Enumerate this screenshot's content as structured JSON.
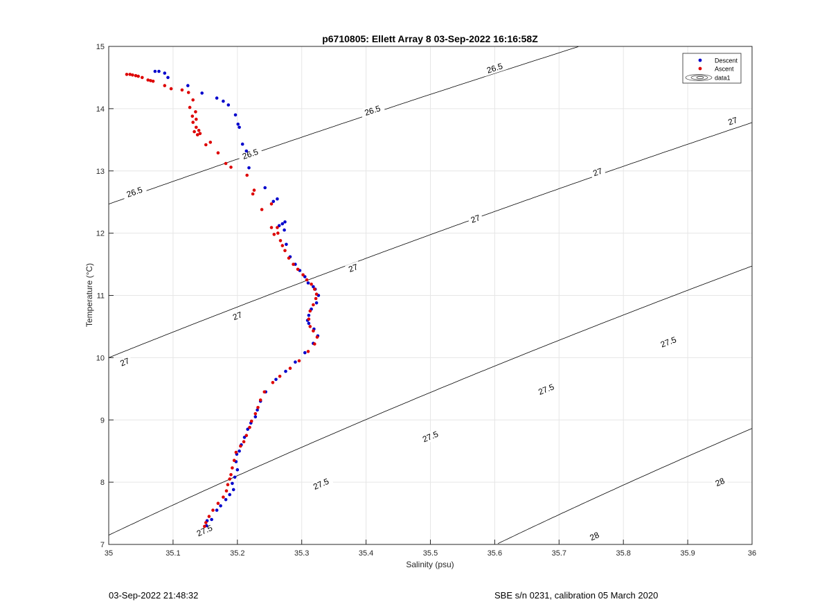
{
  "chart_data": {
    "type": "scatter",
    "title": "p6710805: Ellett Array 8 03-Sep-2022 16:16:58Z",
    "xlabel": "Salinity (psu)",
    "ylabel": "Temperature (°C)",
    "xlim": [
      35,
      36
    ],
    "ylim": [
      7,
      15
    ],
    "xticks": [
      35,
      35.1,
      35.2,
      35.3,
      35.4,
      35.5,
      35.6,
      35.7,
      35.8,
      35.9,
      36
    ],
    "xtick_labels": [
      "35",
      "35.1",
      "35.2",
      "35.3",
      "35.4",
      "35.5",
      "35.6",
      "35.7",
      "35.8",
      "35.9",
      "36"
    ],
    "yticks": [
      7,
      8,
      9,
      10,
      11,
      12,
      13,
      14,
      15
    ],
    "ytick_labels": [
      "7",
      "8",
      "9",
      "10",
      "11",
      "12",
      "13",
      "14",
      "15"
    ],
    "grid": true,
    "legend": {
      "position": "top-right",
      "entries": [
        "Descent",
        "Ascent",
        "data1"
      ]
    },
    "series": [
      {
        "name": "Descent",
        "color": "#0000cc",
        "points": [
          [
            35.072,
            14.6
          ],
          [
            35.078,
            14.6
          ],
          [
            35.087,
            14.57
          ],
          [
            35.092,
            14.5
          ],
          [
            35.123,
            14.37
          ],
          [
            35.145,
            14.25
          ],
          [
            35.168,
            14.17
          ],
          [
            35.178,
            14.12
          ],
          [
            35.186,
            14.06
          ],
          [
            35.197,
            13.9
          ],
          [
            35.201,
            13.75
          ],
          [
            35.203,
            13.7
          ],
          [
            35.208,
            13.43
          ],
          [
            35.214,
            13.32
          ],
          [
            35.218,
            13.05
          ],
          [
            35.243,
            12.73
          ],
          [
            35.256,
            12.51
          ],
          [
            35.262,
            12.55
          ],
          [
            35.265,
            12.12
          ],
          [
            35.27,
            12.15
          ],
          [
            35.274,
            12.18
          ],
          [
            35.273,
            12.05
          ],
          [
            35.276,
            11.82
          ],
          [
            35.282,
            11.62
          ],
          [
            35.29,
            11.5
          ],
          [
            35.297,
            11.4
          ],
          [
            35.305,
            11.3
          ],
          [
            35.31,
            11.2
          ],
          [
            35.318,
            11.14
          ],
          [
            35.321,
            11.1
          ],
          [
            35.326,
            11.0
          ],
          [
            35.323,
            10.88
          ],
          [
            35.315,
            10.78
          ],
          [
            35.311,
            10.68
          ],
          [
            35.309,
            10.6
          ],
          [
            35.311,
            10.55
          ],
          [
            35.319,
            10.46
          ],
          [
            35.325,
            10.35
          ],
          [
            35.318,
            10.23
          ],
          [
            35.305,
            10.08
          ],
          [
            35.29,
            9.93
          ],
          [
            35.275,
            9.78
          ],
          [
            35.26,
            9.65
          ],
          [
            35.244,
            9.45
          ],
          [
            35.236,
            9.3
          ],
          [
            35.231,
            9.16
          ],
          [
            35.228,
            9.05
          ],
          [
            35.221,
            8.95
          ],
          [
            35.216,
            8.85
          ],
          [
            35.211,
            8.72
          ],
          [
            35.206,
            8.6
          ],
          [
            35.203,
            8.5
          ],
          [
            35.199,
            8.45
          ],
          [
            35.198,
            8.33
          ],
          [
            35.2,
            8.2
          ],
          [
            35.196,
            8.08
          ],
          [
            35.192,
            7.98
          ],
          [
            35.194,
            7.88
          ],
          [
            35.188,
            7.8
          ],
          [
            35.182,
            7.72
          ],
          [
            35.174,
            7.62
          ],
          [
            35.168,
            7.55
          ],
          [
            35.16,
            7.4
          ],
          [
            35.153,
            7.38
          ],
          [
            35.152,
            7.3
          ]
        ]
      },
      {
        "name": "Ascent",
        "color": "#dd0000",
        "points": [
          [
            35.028,
            14.55
          ],
          [
            35.033,
            14.55
          ],
          [
            35.037,
            14.54
          ],
          [
            35.042,
            14.53
          ],
          [
            35.046,
            14.52
          ],
          [
            35.052,
            14.5
          ],
          [
            35.061,
            14.46
          ],
          [
            35.065,
            14.45
          ],
          [
            35.069,
            14.44
          ],
          [
            35.087,
            14.37
          ],
          [
            35.097,
            14.32
          ],
          [
            35.114,
            14.3
          ],
          [
            35.124,
            14.26
          ],
          [
            35.131,
            14.14
          ],
          [
            35.126,
            14.02
          ],
          [
            35.135,
            13.95
          ],
          [
            35.13,
            13.88
          ],
          [
            35.136,
            13.83
          ],
          [
            35.131,
            13.78
          ],
          [
            35.136,
            13.7
          ],
          [
            35.14,
            13.65
          ],
          [
            35.133,
            13.63
          ],
          [
            35.138,
            13.58
          ],
          [
            35.142,
            13.6
          ],
          [
            35.151,
            13.42
          ],
          [
            35.158,
            13.46
          ],
          [
            35.17,
            13.29
          ],
          [
            35.182,
            13.12
          ],
          [
            35.19,
            13.06
          ],
          [
            35.215,
            12.93
          ],
          [
            35.226,
            12.69
          ],
          [
            35.224,
            12.63
          ],
          [
            35.253,
            12.47
          ],
          [
            35.238,
            12.38
          ],
          [
            35.253,
            12.09
          ],
          [
            35.262,
            12.09
          ],
          [
            35.263,
            12.0
          ],
          [
            35.257,
            11.98
          ],
          [
            35.267,
            11.88
          ],
          [
            35.27,
            11.8
          ],
          [
            35.274,
            11.72
          ],
          [
            35.28,
            11.6
          ],
          [
            35.287,
            11.5
          ],
          [
            35.294,
            11.42
          ],
          [
            35.302,
            11.33
          ],
          [
            35.308,
            11.25
          ],
          [
            35.315,
            11.18
          ],
          [
            35.32,
            11.1
          ],
          [
            35.323,
            11.02
          ],
          [
            35.322,
            10.95
          ],
          [
            35.318,
            10.85
          ],
          [
            35.313,
            10.75
          ],
          [
            35.311,
            10.62
          ],
          [
            35.313,
            10.5
          ],
          [
            35.318,
            10.43
          ],
          [
            35.324,
            10.33
          ],
          [
            35.32,
            10.22
          ],
          [
            35.31,
            10.1
          ],
          [
            35.296,
            9.95
          ],
          [
            35.282,
            9.83
          ],
          [
            35.266,
            9.7
          ],
          [
            35.255,
            9.6
          ],
          [
            35.242,
            9.45
          ],
          [
            35.236,
            9.32
          ],
          [
            35.232,
            9.2
          ],
          [
            35.228,
            9.1
          ],
          [
            35.222,
            8.98
          ],
          [
            35.219,
            8.88
          ],
          [
            35.214,
            8.75
          ],
          [
            35.21,
            8.65
          ],
          [
            35.205,
            8.58
          ],
          [
            35.198,
            8.48
          ],
          [
            35.195,
            8.35
          ],
          [
            35.192,
            8.23
          ],
          [
            35.19,
            8.12
          ],
          [
            35.188,
            8.05
          ],
          [
            35.185,
            7.96
          ],
          [
            35.183,
            7.86
          ],
          [
            35.178,
            7.76
          ],
          [
            35.17,
            7.66
          ],
          [
            35.162,
            7.55
          ],
          [
            35.156,
            7.45
          ],
          [
            35.151,
            7.35
          ],
          [
            35.149,
            7.29
          ]
        ]
      }
    ],
    "contours": [
      {
        "level": "26.5",
        "sigma": 26.5,
        "labels": [
          [
            35.04,
            12.66
          ],
          [
            35.22,
            13.27
          ],
          [
            35.41,
            13.97
          ],
          [
            35.6,
            14.65
          ]
        ]
      },
      {
        "level": "27",
        "sigma": 27,
        "labels": [
          [
            35.025,
            9.93
          ],
          [
            35.2,
            10.67
          ],
          [
            35.38,
            11.44
          ],
          [
            35.57,
            12.23
          ],
          [
            35.76,
            12.98
          ],
          [
            35.97,
            13.8
          ]
        ]
      },
      {
        "level": "27.5",
        "sigma": 27.5,
        "labels": [
          [
            35.149,
            7.22
          ],
          [
            35.33,
            7.97
          ],
          [
            35.5,
            8.73
          ],
          [
            35.68,
            9.49
          ],
          [
            35.87,
            10.25
          ]
        ]
      },
      {
        "level": "28",
        "sigma": 28,
        "labels": [
          [
            35.755,
            7.13
          ],
          [
            35.95,
            8.0
          ]
        ]
      }
    ]
  },
  "footer": {
    "left": "03-Sep-2022 21:48:32",
    "right": "SBE s/n 0231, calibration 05 March 2020"
  }
}
